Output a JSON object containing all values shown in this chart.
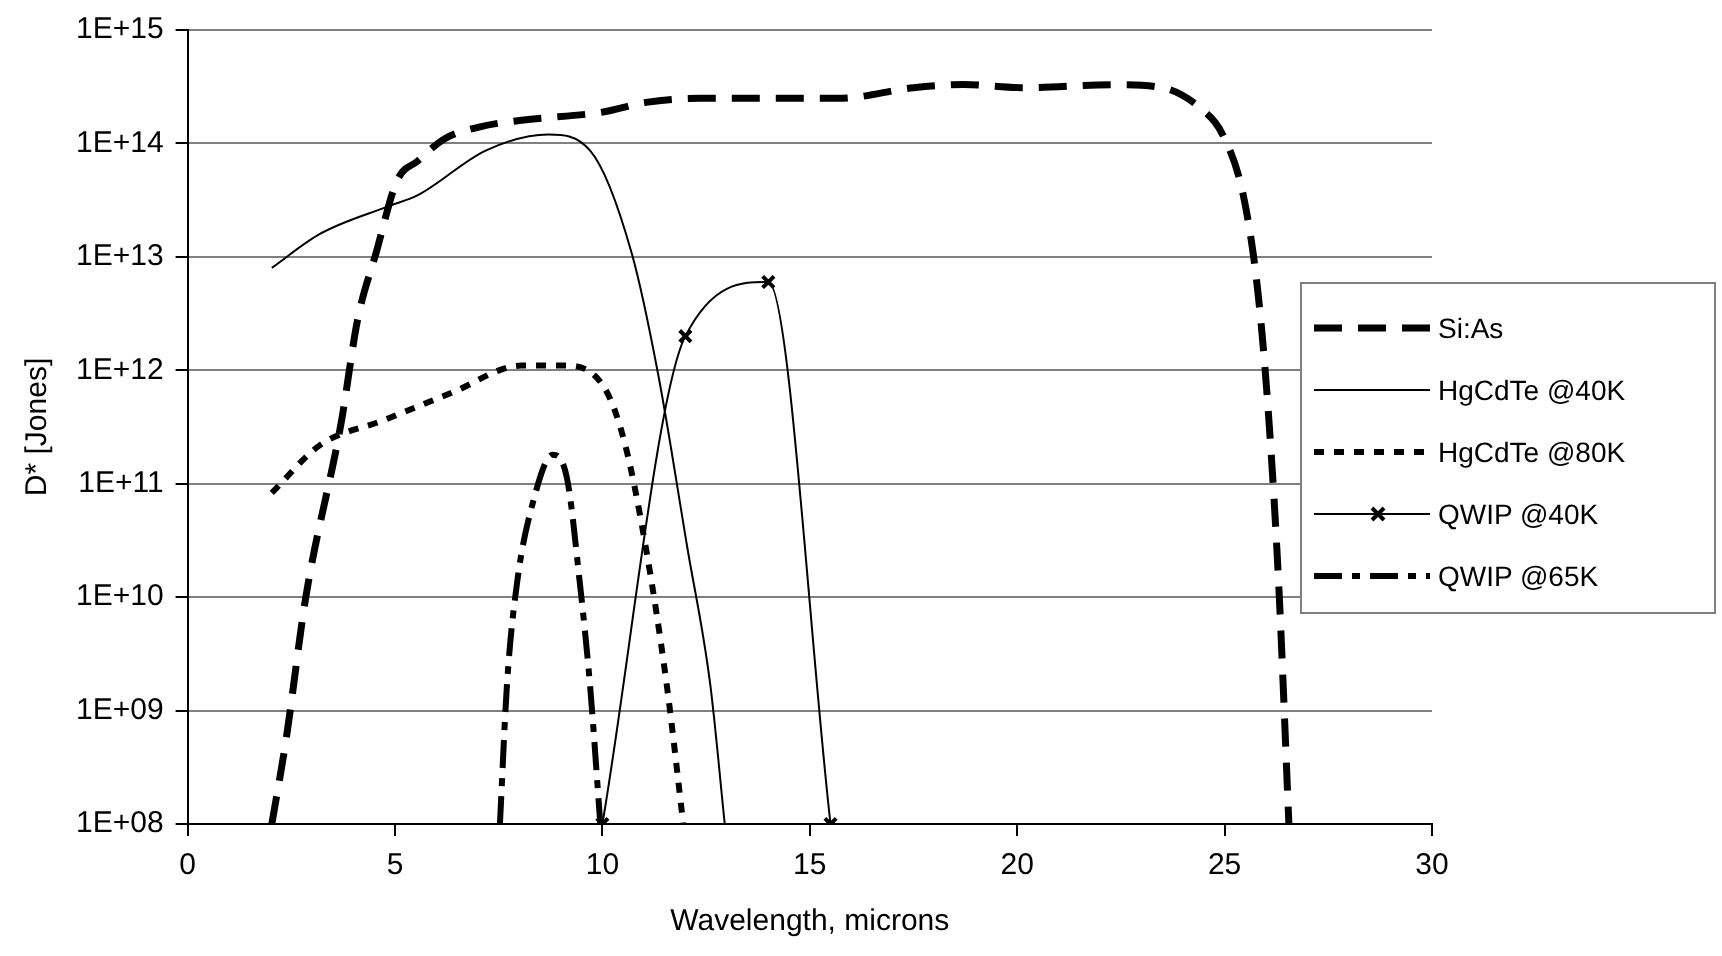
{
  "chart_data": {
    "type": "line",
    "xlabel": "Wavelength, microns",
    "ylabel": "D* [Jones]",
    "log": "y",
    "grid": "y",
    "legend": "right",
    "xlim": [
      0,
      30
    ],
    "xticks": [
      0,
      5,
      10,
      15,
      20,
      25,
      30
    ],
    "ylim": [
      100000000.0,
      1000000000000000.0
    ],
    "yticks": [
      {
        "value": 100000000.0,
        "label": "1E+08"
      },
      {
        "value": 1000000000.0,
        "label": "1E+09"
      },
      {
        "value": 10000000000.0,
        "label": "1E+10"
      },
      {
        "value": 100000000000.0,
        "label": "1E+11"
      },
      {
        "value": 1000000000000.0,
        "label": "1E+12"
      },
      {
        "value": 10000000000000.0,
        "label": "1E+13"
      },
      {
        "value": 100000000000000.0,
        "label": "1E+14"
      },
      {
        "value": 1000000000000000.0,
        "label": "1E+15"
      }
    ],
    "series": [
      {
        "name": "Si:As",
        "color": "#000000",
        "line_style": "dashed",
        "marker": "none",
        "x": [
          2.03,
          2.37,
          2.85,
          3.7,
          4.1,
          4.55,
          5.05,
          5.55,
          6.2,
          7.05,
          8.05,
          10.05,
          11.05,
          12.35,
          15.7,
          17.5,
          18.7,
          20.2,
          22.35,
          23.5,
          24.45,
          24.95,
          25.45,
          25.8,
          26.05,
          26.3,
          26.55
        ],
        "values": [
          100000000.0,
          540000000.0,
          10000000000.0,
          340000000000.0,
          2800000000000.0,
          11000000000000.0,
          47000000000000.0,
          70000000000000.0,
          110000000000000.0,
          140000000000000.0,
          160000000000000.0,
          190000000000000.0,
          230000000000000.0,
          250000000000000.0,
          250000000000000.0,
          310000000000000.0,
          330000000000000.0,
          310000000000000.0,
          330000000000000.0,
          310000000000000.0,
          200000000000000.0,
          120000000000000.0,
          35000000000000.0,
          5000000000000.0,
          450000000000.0,
          14000000000.0,
          100000000.0
        ]
      },
      {
        "name": "HgCdTe @40K",
        "color": "#000000",
        "line_style": "solid",
        "marker": "none",
        "x": [
          2.03,
          3.2,
          4.85,
          5.55,
          7.2,
          8.7,
          9.7,
          10.7,
          11.35,
          12.05,
          12.6,
          12.95
        ],
        "values": [
          8000000000000.0,
          16000000000000.0,
          28000000000000.0,
          35000000000000.0,
          87000000000000.0,
          120000000000000.0,
          87000000000000.0,
          11000000000000.0,
          900000000000.0,
          27000000000.0,
          1700000000.0,
          100000000.0
        ]
      },
      {
        "name": "HgCdTe @80K",
        "color": "#000000",
        "line_style": "dotted",
        "marker": "none",
        "x": [
          2.03,
          3.2,
          4.7,
          6.35,
          8.05,
          9.05,
          10.05,
          10.55,
          11.05,
          11.55,
          11.95
        ],
        "values": [
          83000000000.0,
          220000000000.0,
          360000000000.0,
          630000000000.0,
          1100000000000.0,
          1100000000000.0,
          700000000000.0,
          220000000000.0,
          27000000000.0,
          1700000000.0,
          100000000.0
        ]
      },
      {
        "name": "QWIP @40K",
        "color": "#000000",
        "line_style": "solid",
        "marker": "cross",
        "x": [
          10,
          12,
          14,
          15.5
        ],
        "values": [
          100000000.0,
          2000000000000.0,
          6000000000000.0,
          100000000.0
        ]
      },
      {
        "name": "QWIP @65K",
        "color": "#000000",
        "line_style": "dashdot",
        "marker": "none",
        "x": [
          7.53,
          7.7,
          7.95,
          8.3,
          8.8,
          9.15,
          9.45,
          9.7,
          9.95
        ],
        "values": [
          100000000.0,
          1700000000.0,
          14000000000.0,
          63000000000.0,
          180000000000.0,
          110000000000.0,
          14000000000.0,
          1700000000.0,
          100000000.0
        ]
      }
    ]
  }
}
